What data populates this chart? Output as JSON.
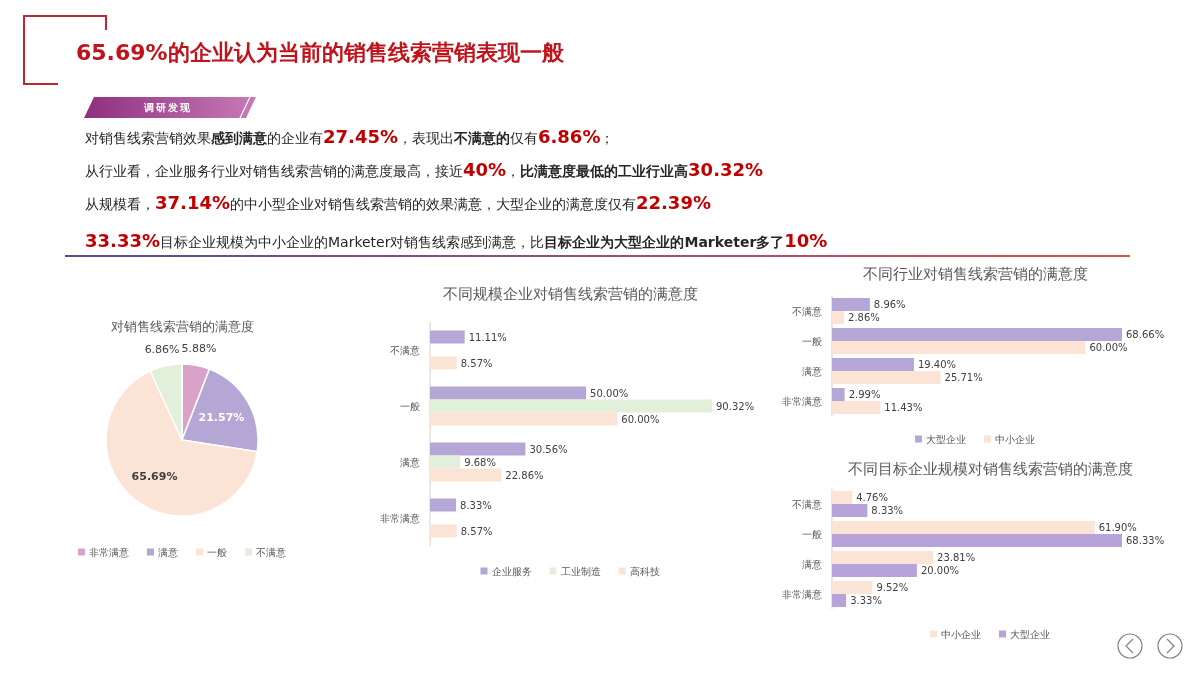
{
  "chart_data": [
    {
      "type": "other",
      "title": "65.69%的企业认为当前的销售线索营销表现一般",
      "subtitle": "调研发现",
      "annotations": [
        "对销售线索营销效果**感到满意**的企业有**27.45%**，表现出**不满意的**仅有**6.86%**；",
        "从行业看，企业服务行业对销售线索营销的满意度最高，接近**40%**，**比满意度最低的工业行业高****30.32%**",
        "从规模看，**37.14%**的中小型企业对销售线索营销的效果满意，大型企业的满意度仅有**22.39%**",
        "**33.33%**目标企业规模为中小企业的Marketer对销售线索感到满意，比**目标企业为大型企业的Marketer多了****10%**"
      ]
    },
    {
      "type": "pie",
      "title": "对销售线索营销的满意度",
      "categories": [
        "非常满意",
        "满意",
        "一般",
        "不满意"
      ],
      "values": [
        5.88,
        21.57,
        65.69,
        6.86
      ],
      "value_labels": [
        "5.88%",
        "21.57%",
        "65.69%",
        "6.86%"
      ],
      "colors": [
        "#d9a3c9",
        "#b4a7d6",
        "#fbe3d6",
        "#e2efda"
      ],
      "legend": "bottom"
    },
    {
      "type": "bar",
      "orientation": "horizontal",
      "title": "不同规模企业对销售线索营销的满意度",
      "categories": [
        "不满意",
        "一般",
        "满意",
        "非常满意"
      ],
      "series": [
        {
          "name": "企业服务",
          "color": "#b4a7d6",
          "values": [
            11.11,
            50.0,
            30.56,
            8.33
          ],
          "value_labels": [
            "11.11%",
            "50.00%",
            "30.56%",
            "8.33%"
          ]
        },
        {
          "name": "工业制造",
          "color": "#e2efda",
          "values": [
            null,
            90.32,
            9.68,
            null
          ],
          "value_labels": [
            null,
            "90.32%",
            "9.68%",
            null
          ]
        },
        {
          "name": "高科技",
          "color": "#fbe3d6",
          "values": [
            8.57,
            60.0,
            22.86,
            8.57
          ],
          "value_labels": [
            "8.57%",
            "60.00%",
            "22.86%",
            "8.57%"
          ]
        }
      ],
      "legend": "bottom"
    },
    {
      "type": "bar",
      "orientation": "horizontal",
      "title": "不同行业对销售线索营销的满意度",
      "categories": [
        "不满意",
        "一般",
        "满意",
        "非常满意"
      ],
      "series": [
        {
          "name": "大型企业",
          "color": "#b4a7d6",
          "values": [
            8.96,
            68.66,
            19.4,
            2.99
          ],
          "value_labels": [
            "8.96%",
            "68.66%",
            "19.40%",
            "2.99%"
          ]
        },
        {
          "name": "中小企业",
          "color": "#fbe3d6",
          "values": [
            2.86,
            60.0,
            25.71,
            11.43
          ],
          "value_labels": [
            "2.86%",
            "60.00%",
            "25.71%",
            "11.43%"
          ]
        }
      ],
      "legend": "bottom"
    },
    {
      "type": "bar",
      "orientation": "horizontal",
      "title": "不同目标企业规模对销售线索营销的满意度",
      "categories": [
        "不满意",
        "一般",
        "满意",
        "非常满意"
      ],
      "series": [
        {
          "name": "中小企业",
          "color": "#fbe3d6",
          "values": [
            4.76,
            61.9,
            23.81,
            9.52
          ],
          "value_labels": [
            "4.76%",
            "61.90%",
            "23.81%",
            "9.52%"
          ]
        },
        {
          "name": "大型企业",
          "color": "#b7a2d9",
          "values": [
            8.33,
            68.33,
            20.0,
            3.33
          ],
          "value_labels": [
            "8.33%",
            "68.33%",
            "20.00%",
            "3.33%"
          ]
        }
      ],
      "legend": "bottom"
    }
  ]
}
